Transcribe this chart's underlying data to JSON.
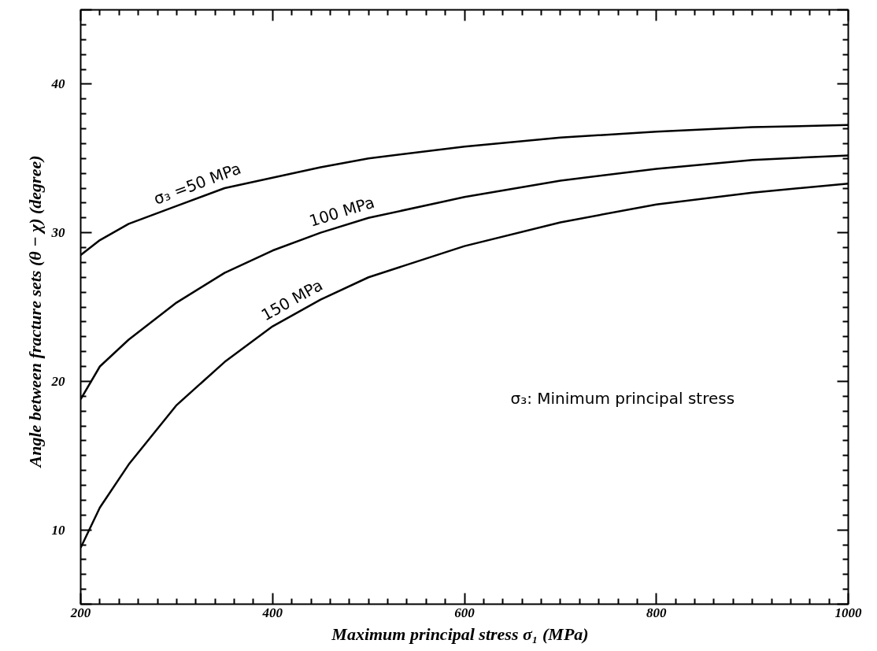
{
  "chart_data": {
    "type": "line",
    "xlabel": "Maximum principal stress  σ₁  (MPa)",
    "ylabel": "Angle between fracture sets  (θ − χ)  (degree)",
    "x": [
      200,
      220,
      250,
      300,
      350,
      400,
      450,
      500,
      600,
      700,
      800,
      900,
      1000
    ],
    "series": [
      {
        "name": "σ₃ =50 MPa",
        "color": "#000000",
        "values": [
          28.5,
          29.5,
          30.6,
          31.8,
          33.0,
          33.7,
          34.4,
          35.0,
          35.8,
          36.4,
          36.8,
          37.1,
          37.25
        ]
      },
      {
        "name": "100 MPa",
        "color": "#000000",
        "values": [
          18.8,
          21.0,
          22.8,
          25.3,
          27.3,
          28.8,
          30.0,
          31.0,
          32.4,
          33.5,
          34.3,
          34.9,
          35.2
        ]
      },
      {
        "name": "150 MPa",
        "color": "#000000",
        "values": [
          8.8,
          11.5,
          14.4,
          18.4,
          21.3,
          23.7,
          25.5,
          27.0,
          29.1,
          30.7,
          31.9,
          32.7,
          33.3
        ]
      }
    ],
    "annotations": [
      "σ₃: Minimum principal stress"
    ],
    "xlim": [
      200,
      1000
    ],
    "ylim": [
      5,
      45
    ],
    "xticks": [
      200,
      400,
      600,
      800,
      1000
    ],
    "yticks": [
      {
        "value": 5,
        "label": null
      },
      10,
      20,
      30,
      40,
      {
        "value": 45,
        "label": null
      }
    ],
    "grid": false,
    "marker": "none",
    "line_style": "solid"
  }
}
